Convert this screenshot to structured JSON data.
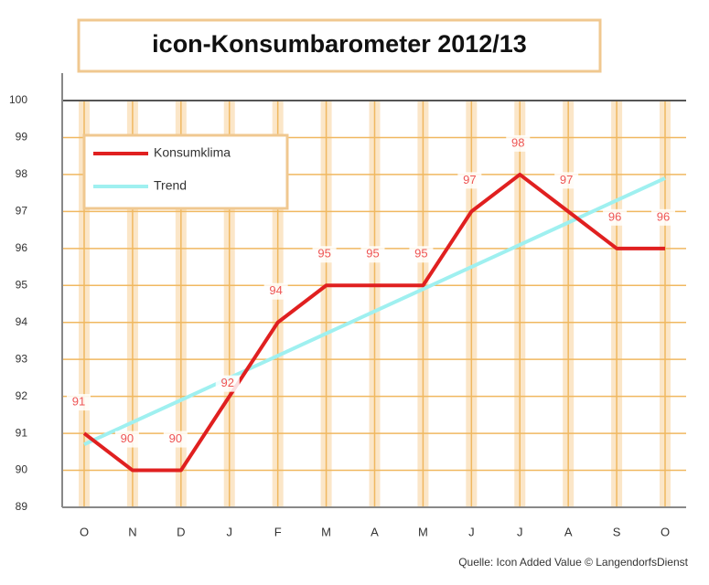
{
  "chart_data": {
    "type": "line",
    "title": "icon-Konsumbarometer 2012/13",
    "source": "Quelle: Icon Added Value © LangendorfsDienst",
    "categories": [
      "O",
      "N",
      "D",
      "J",
      "F",
      "M",
      "A",
      "M",
      "J",
      "J",
      "A",
      "S",
      "O"
    ],
    "series": [
      {
        "name": "Konsumklima",
        "color": "#e02020",
        "values": [
          91,
          90,
          90,
          92,
          94,
          95,
          95,
          95,
          97,
          98,
          97,
          96,
          96
        ],
        "labels_shown": true
      },
      {
        "name": "Trend",
        "color": "#9ff0f0",
        "values": [
          90.7,
          91.3,
          91.9,
          92.5,
          93.1,
          93.7,
          94.3,
          94.9,
          95.5,
          96.1,
          96.7,
          97.3,
          97.9
        ]
      }
    ],
    "ylim": [
      89,
      100
    ],
    "yticks": [
      89,
      90,
      91,
      92,
      93,
      94,
      95,
      96,
      97,
      98,
      99,
      100
    ],
    "grid": true,
    "legend": "upper left"
  }
}
